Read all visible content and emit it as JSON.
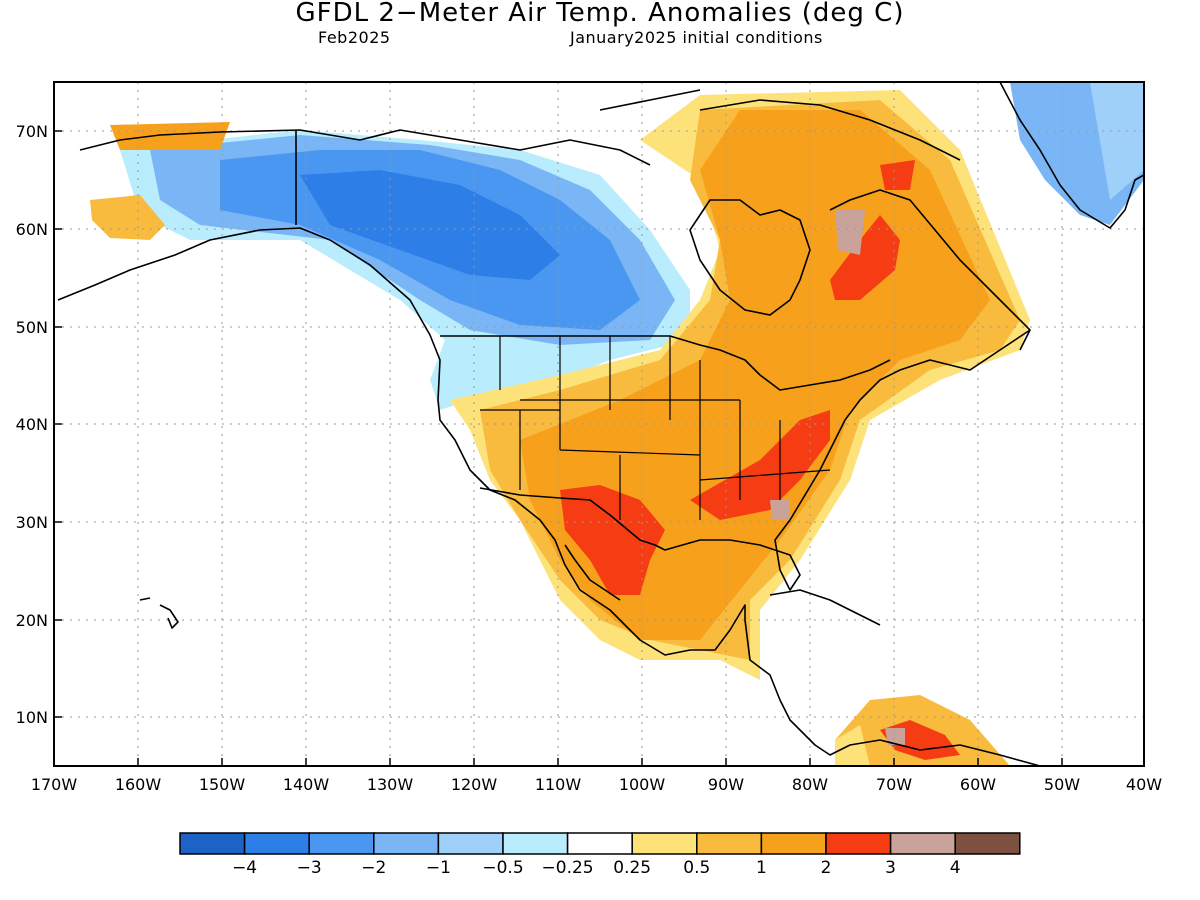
{
  "title": "GFDL 2−Meter Air Temp. Anomalies (deg C)",
  "valid_month": "Feb2025",
  "initial_conditions": "January2025 initial conditions",
  "lat_labels": [
    "70N",
    "60N",
    "50N",
    "40N",
    "30N",
    "20N",
    "10N"
  ],
  "lon_labels": [
    "170W",
    "160W",
    "150W",
    "140W",
    "130W",
    "120W",
    "110W",
    "100W",
    "90W",
    "80W",
    "70W",
    "60W",
    "50W",
    "40W"
  ],
  "colorbar": {
    "labels": [
      "−4",
      "−3",
      "−2",
      "−1",
      "−0.5",
      "−0.25",
      "0.25",
      "0.5",
      "1",
      "2",
      "3",
      "4"
    ],
    "colors": [
      "#1c62c7",
      "#2e7ee8",
      "#4a97f2",
      "#7ab6f6",
      "#9fd0fa",
      "#b9ecfc",
      "#ffffff",
      "#fde27a",
      "#f9bb3e",
      "#f7a01c",
      "#f53c13",
      "#c9a29a",
      "#7e5040"
    ]
  },
  "features": {
    "land_color": "#ffffff",
    "gridline_style": "dotted"
  }
}
